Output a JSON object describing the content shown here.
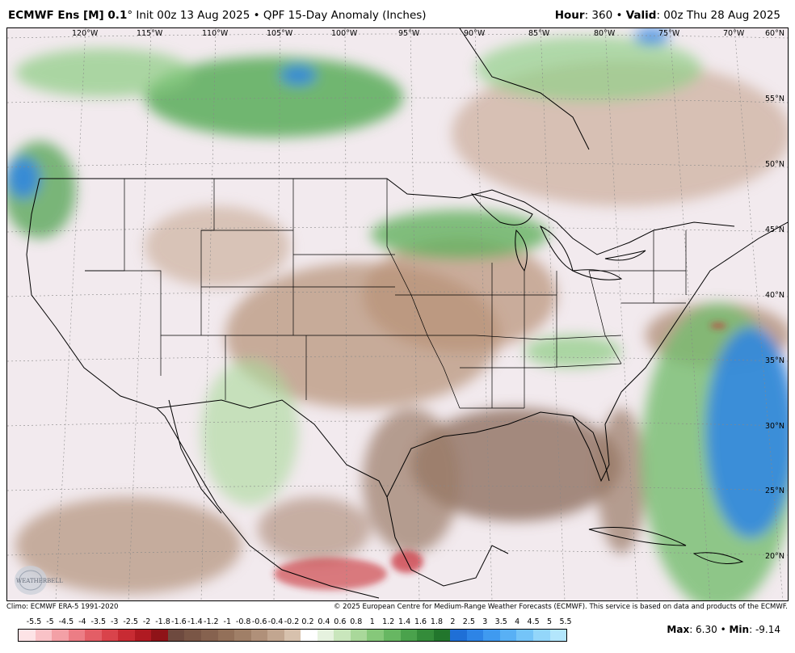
{
  "header": {
    "model": "ECMWF Ens [M] 0.1",
    "degree": "°",
    "init": " Init 00z 13 Aug 2025 • QPF 15-Day Anomaly (Inches)",
    "hour_label": "Hour",
    "hour_value": ": 360 • ",
    "valid_label": "Valid",
    "valid_value": ": 00z Thu 28 Aug 2025"
  },
  "map": {
    "lon_labels": [
      "120°W",
      "115°W",
      "110°W",
      "105°W",
      "100°W",
      "95°W",
      "90°W",
      "85°W",
      "80°W",
      "75°W",
      "70°W"
    ],
    "lat_labels": [
      "60°N",
      "55°N",
      "50°N",
      "45°N",
      "40°N",
      "35°N",
      "30°N",
      "25°N",
      "20°N"
    ],
    "logo_text": "WEATHERBELL"
  },
  "footer": {
    "climo": "Climo: ECMWF ERA-5 1991-2020",
    "copyright": "© 2025 European Centre for Medium-Range Weather Forecasts (ECMWF). This service is based on data and products of the ECMWF."
  },
  "legend": {
    "labels": [
      "-5.5",
      "-5",
      "-4.5",
      "-4",
      "-3.5",
      "-3",
      "-2.5",
      "-2",
      "-1.8",
      "-1.6",
      "-1.4",
      "-1.2",
      "-1",
      "-0.8",
      "-0.6",
      "-0.4",
      "-0.2",
      "0.2",
      "0.4",
      "0.6",
      "0.8",
      "1",
      "1.2",
      "1.4",
      "1.6",
      "1.8",
      "2",
      "2.5",
      "3",
      "3.5",
      "4",
      "4.5",
      "5",
      "5.5"
    ],
    "colors": [
      "#fde3e6",
      "#f9c2c7",
      "#f3a0a6",
      "#ec7d85",
      "#e35e66",
      "#d9434b",
      "#c82b33",
      "#b01a22",
      "#8f1318",
      "#6e4a3f",
      "#7a5646",
      "#86624f",
      "#937059",
      "#a07f67",
      "#b09079",
      "#c2a690",
      "#d7c1ad",
      "#ffffff",
      "#e6f2df",
      "#c9e6bc",
      "#a9d89a",
      "#86c87a",
      "#67b762",
      "#4aa24c",
      "#348c3a",
      "#22762c",
      "#1f6fd6",
      "#2d84e6",
      "#3f9af0",
      "#58b0f5",
      "#74c4f8",
      "#93d6fa",
      "#b3e6fc"
    ]
  },
  "stats": {
    "max_label": "Max",
    "max_value": ": 6.30 • ",
    "min_label": "Min",
    "min_value": ": -9.14"
  }
}
